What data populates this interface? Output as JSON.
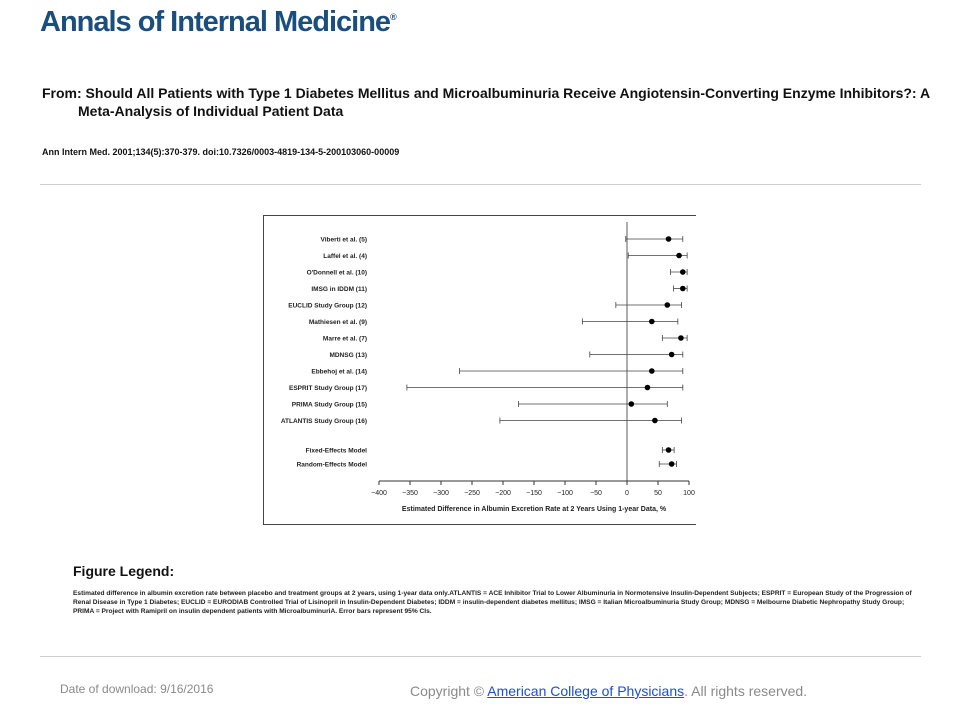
{
  "header": {
    "logo_text": "Annals of Internal Medicine",
    "logo_mark": "®"
  },
  "article": {
    "title": "From: Should All Patients with Type 1 Diabetes Mellitus and Microalbuminuria Receive Angiotensin-Converting Enzyme Inhibitors?: A Meta-Analysis of Individual Patient Data",
    "citation": "Ann Intern Med. 2001;134(5):370-379. doi:10.7326/0003-4819-134-5-200103060-00009"
  },
  "chart_data": {
    "type": "forest",
    "xlabel": "Estimated Difference in Albumin Excretion Rate at 2 Years Using 1-year Data, %",
    "xlim": [
      -400,
      100
    ],
    "xticks": [
      -400,
      -350,
      -300,
      -250,
      -200,
      -150,
      -100,
      -50,
      0,
      50,
      100
    ],
    "reference_line": 0,
    "studies": [
      {
        "label": "Viberti et al. (5)",
        "estimate": 67,
        "lower": -2,
        "upper": 90
      },
      {
        "label": "Laffel et al. (4)",
        "estimate": 84,
        "lower": 2,
        "upper": 97
      },
      {
        "label": "O'Donnell et al. (10)",
        "estimate": 90,
        "lower": 70,
        "upper": 97
      },
      {
        "label": "IMSG in IDDM (11)",
        "estimate": 90,
        "lower": 75,
        "upper": 97
      },
      {
        "label": "EUCLID Study Group (12)",
        "estimate": 65,
        "lower": -18,
        "upper": 88
      },
      {
        "label": "Mathiesen et al. (9)",
        "estimate": 40,
        "lower": -72,
        "upper": 82
      },
      {
        "label": "Marre et al. (7)",
        "estimate": 87,
        "lower": 57,
        "upper": 97
      },
      {
        "label": "MDNSG (13)",
        "estimate": 72,
        "lower": -60,
        "upper": 90
      },
      {
        "label": "Ebbehoj et al. (14)",
        "estimate": 40,
        "lower": -270,
        "upper": 90
      },
      {
        "label": "ESPRIT Study Group (17)",
        "estimate": 33,
        "lower": -355,
        "upper": 90
      },
      {
        "label": "PRIMA Study Group (15)",
        "estimate": 7,
        "lower": -175,
        "upper": 65
      },
      {
        "label": "ATLANTIS Study Group (16)",
        "estimate": 45,
        "lower": -205,
        "upper": 88
      }
    ],
    "summary": [
      {
        "label": "Fixed-Effects Model",
        "estimate": 67,
        "lower": 57,
        "upper": 76
      },
      {
        "label": "Random-Effects Model",
        "estimate": 72,
        "lower": 52,
        "upper": 80
      }
    ]
  },
  "legend": {
    "heading": "Figure Legend:",
    "text": "Estimated difference in albumin excretion rate between placebo and treatment groups at 2 years, using 1-year data only.ATLANTIS = ACE Inhibitor Trial to Lower Albuminuria in Normotensive Insulin-Dependent Subjects; ESPRIT = European Study of the Progression of Renal Disease in Type 1 Diabetes; EUCLID = EURODIAB Controlled Trial of Lisinopril in Insulin-Dependent Diabetes; IDDM = insulin-dependent diabetes mellitus; IMSG = Italian Microalbuminuria Study Group; MDNSG = Melbourne Diabetic Nephropathy Study Group; PRIMA = Project with Ramipril on insulin dependent patients with MicroalbuminuriA. Error bars represent 95% CIs."
  },
  "footer": {
    "date_text": "Date of download:  9/16/2016",
    "copyright_prefix": "Copyright © ",
    "link_text": "American College of Physicians",
    "copyright_suffix": ". All rights reserved."
  },
  "colors": {
    "logo": "#1a4e7e",
    "link": "#1a4fd0",
    "footer_text": "#8a8a8a"
  }
}
